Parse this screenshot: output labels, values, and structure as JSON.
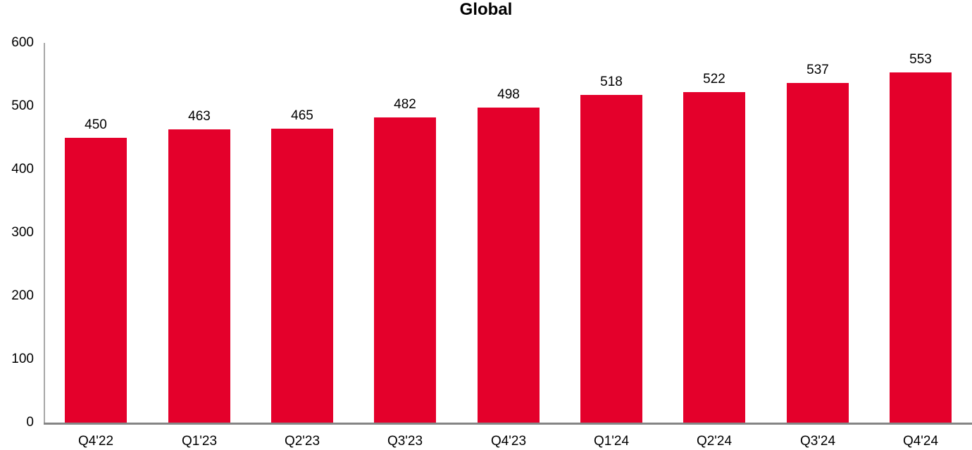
{
  "chart_data": {
    "type": "bar",
    "title": "Global",
    "categories": [
      "Q4'22",
      "Q1'23",
      "Q2'23",
      "Q3'23",
      "Q4'23",
      "Q1'24",
      "Q2'24",
      "Q3'24",
      "Q4'24"
    ],
    "values": [
      450,
      463,
      465,
      482,
      498,
      518,
      522,
      537,
      553
    ],
    "xlabel": "",
    "ylabel": "",
    "ylim": [
      0,
      600
    ],
    "yticks": [
      0,
      100,
      200,
      300,
      400,
      500,
      600
    ],
    "grid": false,
    "legend_position": "none",
    "data_labels_shown": true,
    "colors": {
      "bar": "#e4002b",
      "y_axis_line": "#a8a8a8",
      "x_axis_line": "#858585",
      "text": "#000000",
      "background": "#ffffff"
    }
  }
}
